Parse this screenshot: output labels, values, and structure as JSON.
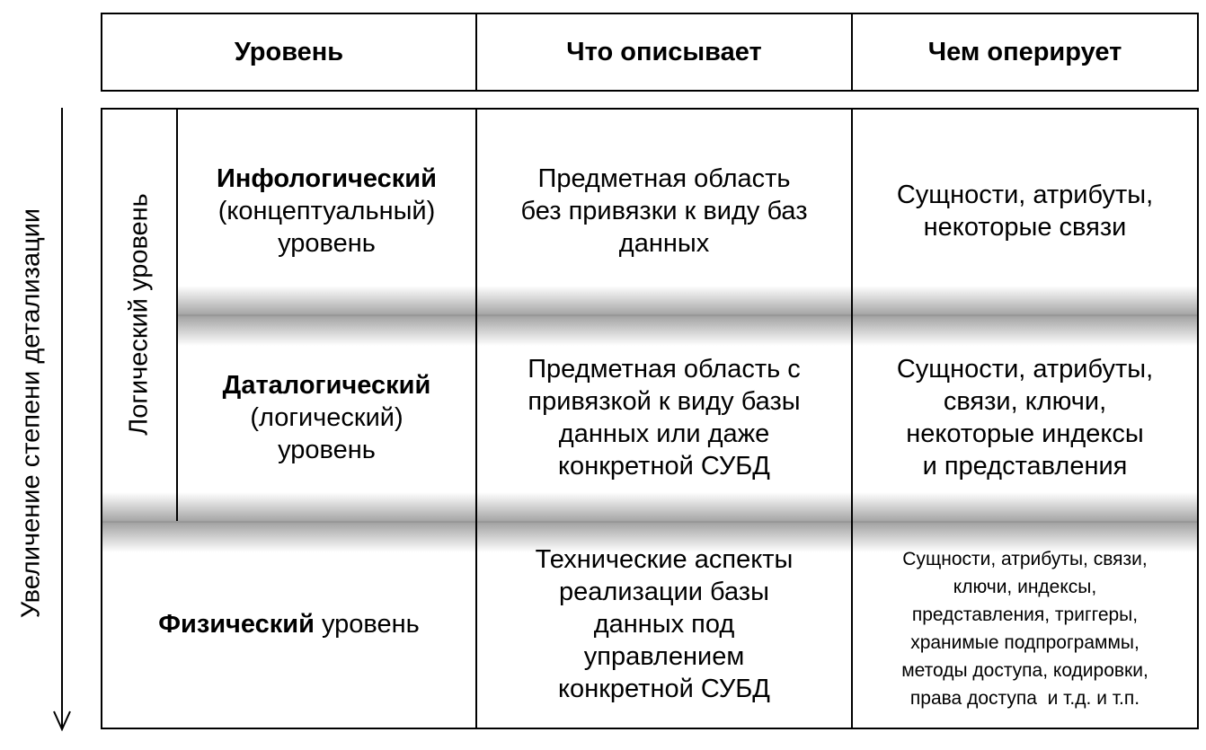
{
  "header": {
    "col1": "Уровень",
    "col2": "Что описывает",
    "col3": "Чем оперирует"
  },
  "side_label": "Увеличение степени детализации",
  "logical_group_label": "Логический уровень",
  "rows": [
    {
      "level_bold": "Инфологический",
      "level_rest": [
        "(концептуальный)",
        "уровень"
      ],
      "describes": [
        "Предметная область",
        "без привязки к виду баз",
        "данных"
      ],
      "operates": [
        "Сущности, атрибуты,",
        "некоторые связи"
      ]
    },
    {
      "level_bold": "Даталогический",
      "level_rest": [
        "(логический)",
        "уровень"
      ],
      "describes": [
        "Предметная область с",
        "привязкой к виду базы",
        "данных или даже",
        "конкретной СУБД"
      ],
      "operates": [
        "Сущности, атрибуты,",
        "связи, ключи,",
        "некоторые индексы",
        "и представления"
      ]
    },
    {
      "level_bold": "Физический",
      "level_inline": " уровень",
      "describes": [
        "Технические аспекты",
        "реализации базы",
        "данных под",
        "управлением",
        "конкретной СУБД"
      ],
      "operates": [
        "Сущности, атрибуты, связи,",
        "ключи, индексы,",
        "представления, триггеры,",
        "хранимые подпрограммы,",
        "методы доступа, кодировки,",
        "права доступа  и т.д. и т.п."
      ]
    }
  ]
}
